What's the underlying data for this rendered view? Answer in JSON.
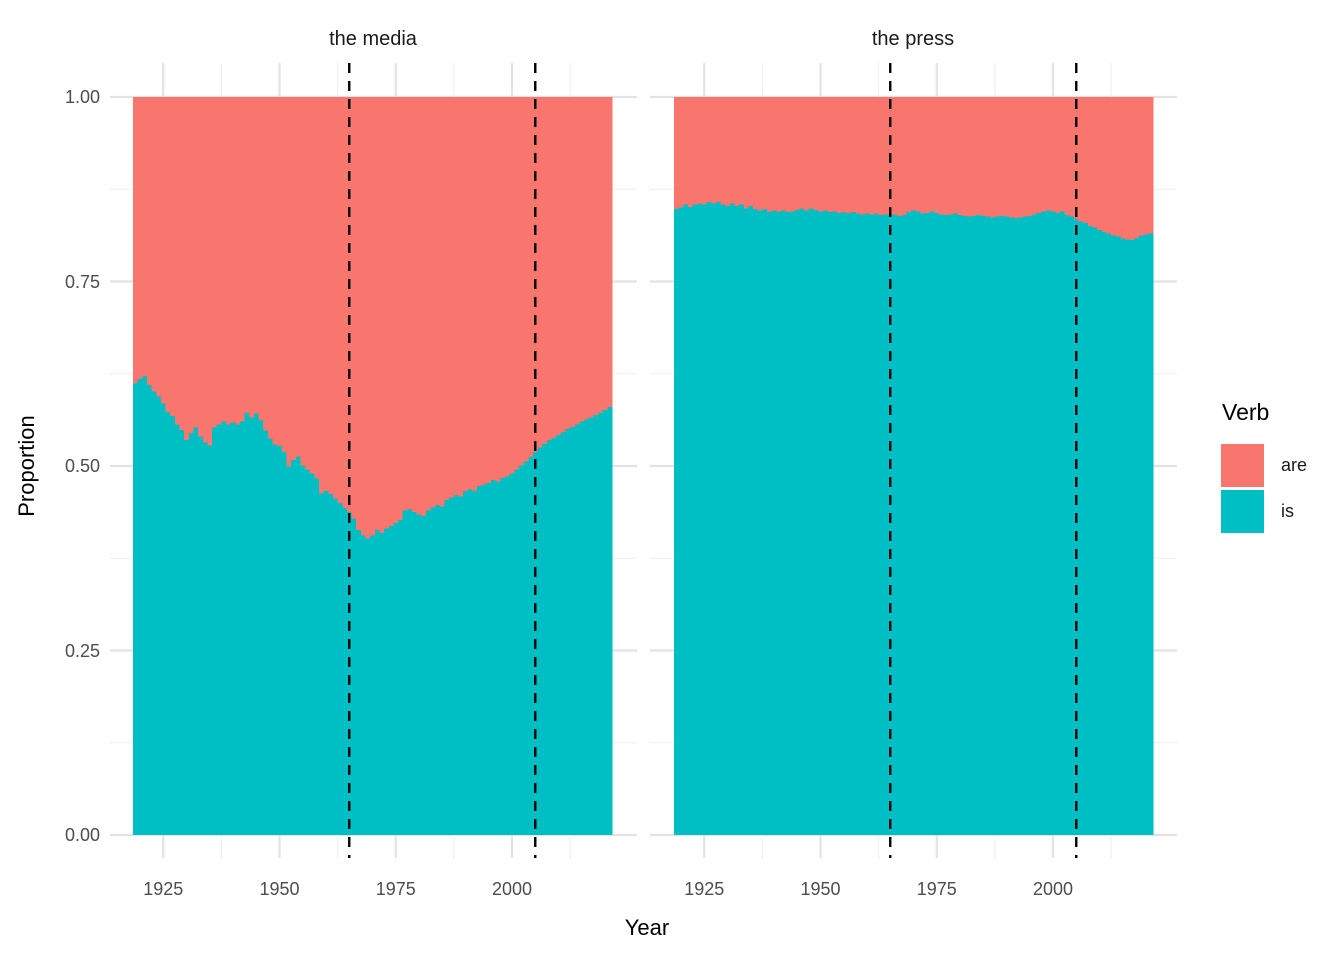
{
  "chart_data": {
    "type": "area",
    "subtype": "stacked-proportion-by-year",
    "title": "",
    "xlabel": "Year",
    "ylabel": "Proportion",
    "ylim": [
      0,
      1
    ],
    "grid": true,
    "years": {
      "start": 1919,
      "end": 2021,
      "step": 1
    },
    "note": "Each facet shows yearly stacked proportions; value listed is proportion of 'is' (teal, bottom); proportion of 'are' (salmon, top) = 1 - is.",
    "x_ticks": [
      {
        "value": 1925,
        "label": "1925"
      },
      {
        "value": 1950,
        "label": "1950"
      },
      {
        "value": 1975,
        "label": "1975"
      },
      {
        "value": 2000,
        "label": "2000"
      }
    ],
    "x_minor_ticks": [
      1937.5,
      1962.5,
      1987.5,
      2012.5
    ],
    "y_ticks": [
      {
        "value": 0.0,
        "label": "0.00"
      },
      {
        "value": 0.25,
        "label": "0.25"
      },
      {
        "value": 0.5,
        "label": "0.50"
      },
      {
        "value": 0.75,
        "label": "0.75"
      },
      {
        "value": 1.0,
        "label": "1.00"
      }
    ],
    "y_minor_ticks": [
      0.125,
      0.375,
      0.625,
      0.875
    ],
    "reference_lines": {
      "x": [
        1965,
        2005
      ],
      "style": "dashed",
      "color": "#000000"
    },
    "facets": [
      {
        "title": "the media",
        "series_name": "is",
        "is_proportion": [
          0.612,
          0.618,
          0.622,
          0.61,
          0.601,
          0.594,
          0.585,
          0.573,
          0.568,
          0.556,
          0.549,
          0.535,
          0.545,
          0.552,
          0.54,
          0.532,
          0.528,
          0.552,
          0.556,
          0.56,
          0.556,
          0.559,
          0.556,
          0.56,
          0.572,
          0.566,
          0.571,
          0.562,
          0.548,
          0.537,
          0.529,
          0.527,
          0.519,
          0.499,
          0.508,
          0.513,
          0.501,
          0.495,
          0.49,
          0.483,
          0.463,
          0.466,
          0.462,
          0.456,
          0.45,
          0.443,
          0.438,
          0.429,
          0.413,
          0.406,
          0.402,
          0.406,
          0.413,
          0.409,
          0.415,
          0.419,
          0.423,
          0.427,
          0.44,
          0.442,
          0.438,
          0.434,
          0.432,
          0.44,
          0.444,
          0.447,
          0.445,
          0.454,
          0.457,
          0.461,
          0.459,
          0.466,
          0.468,
          0.466,
          0.473,
          0.475,
          0.477,
          0.481,
          0.479,
          0.484,
          0.486,
          0.49,
          0.495,
          0.501,
          0.506,
          0.512,
          0.519,
          0.525,
          0.53,
          0.535,
          0.538,
          0.542,
          0.546,
          0.55,
          0.553,
          0.556,
          0.56,
          0.563,
          0.566,
          0.569,
          0.572,
          0.576,
          0.58
        ]
      },
      {
        "title": "the press",
        "series_name": "is",
        "is_proportion": [
          0.848,
          0.85,
          0.854,
          0.851,
          0.854,
          0.856,
          0.854,
          0.858,
          0.856,
          0.858,
          0.854,
          0.852,
          0.856,
          0.852,
          0.854,
          0.849,
          0.852,
          0.848,
          0.846,
          0.848,
          0.844,
          0.846,
          0.844,
          0.846,
          0.844,
          0.845,
          0.847,
          0.849,
          0.846,
          0.849,
          0.847,
          0.845,
          0.846,
          0.844,
          0.845,
          0.843,
          0.844,
          0.842,
          0.844,
          0.842,
          0.841,
          0.842,
          0.841,
          0.842,
          0.84,
          0.841,
          0.84,
          0.841,
          0.839,
          0.84,
          0.844,
          0.846,
          0.845,
          0.842,
          0.843,
          0.845,
          0.843,
          0.841,
          0.84,
          0.841,
          0.842,
          0.84,
          0.839,
          0.838,
          0.839,
          0.84,
          0.839,
          0.838,
          0.837,
          0.838,
          0.839,
          0.838,
          0.837,
          0.836,
          0.837,
          0.838,
          0.839,
          0.841,
          0.843,
          0.845,
          0.846,
          0.845,
          0.843,
          0.845,
          0.84,
          0.838,
          0.834,
          0.831,
          0.829,
          0.825,
          0.823,
          0.82,
          0.817,
          0.815,
          0.812,
          0.811,
          0.808,
          0.807,
          0.806,
          0.809,
          0.812,
          0.814,
          0.815
        ]
      }
    ]
  },
  "legend": {
    "title": "Verb",
    "items": [
      {
        "label": "are",
        "color": "#F8766D"
      },
      {
        "label": "is",
        "color": "#00BFC4"
      }
    ]
  },
  "colors": {
    "are": "#F8766D",
    "is": "#00BFC4",
    "grid_major": "#E3E3E3",
    "grid_minor": "#F0F0F0",
    "tick_text": "#4d4d4d",
    "reference_line": "#000000",
    "background": "#ffffff"
  }
}
